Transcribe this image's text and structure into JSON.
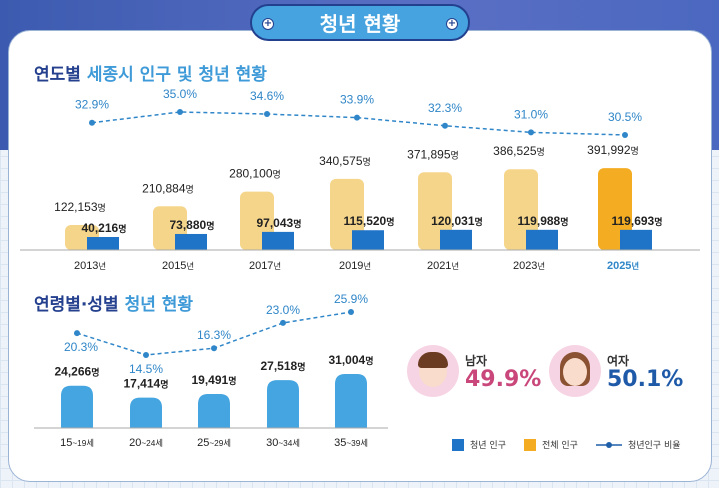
{
  "header": {
    "title": "청년 현황"
  },
  "colors": {
    "youth": "#1f74c8",
    "total": "#f5d58a",
    "total_highlight": "#f4ad22",
    "line": "#2f86c8",
    "bottom_bar": "#45a5e0",
    "male": "#c9477a",
    "female": "#1e5aa8"
  },
  "chart_data": [
    {
      "type": "bar+line",
      "title_dark": "연도별",
      "title_light": "세종시 인구 및 청년 현황",
      "categories": [
        "2013년",
        "2015년",
        "2017년",
        "2019년",
        "2021년",
        "2023년",
        "2025년"
      ],
      "series": [
        {
          "name": "청년 인구",
          "values": [
            40216,
            73880,
            97043,
            115520,
            120031,
            119988,
            119693
          ],
          "labels": [
            "40,216명",
            "73,880명",
            "97,043명",
            "115,520명",
            "120,031명",
            "119,988명",
            "119,693명"
          ]
        },
        {
          "name": "전체 인구",
          "values": [
            122153,
            210884,
            280100,
            340575,
            371895,
            386525,
            391992
          ],
          "labels": [
            "122,153명",
            "210,884명",
            "280,100명",
            "340,575명",
            "371,895명",
            "386,525명",
            "391,992명"
          ]
        },
        {
          "name": "청년인구 비율",
          "values": [
            32.9,
            35.0,
            34.6,
            33.9,
            32.3,
            31.0,
            30.5
          ],
          "labels": [
            "32.9%",
            "35.0%",
            "34.6%",
            "33.9%",
            "32.3%",
            "31.0%",
            "30.5%"
          ]
        }
      ],
      "highlight": "2025년"
    },
    {
      "type": "bar+line",
      "title_dark": "연령별·성별",
      "title_light": "청년 현황",
      "categories": [
        "15~19세",
        "20~24세",
        "25~29세",
        "30~34세",
        "35~39세"
      ],
      "series": [
        {
          "name": "청년 인구",
          "values": [
            24266,
            17414,
            19491,
            27518,
            31004
          ],
          "labels": [
            "24,266명",
            "17,414명",
            "19,491명",
            "27,518명",
            "31,004명"
          ]
        },
        {
          "name": "청년인구 비율",
          "values": [
            20.3,
            14.5,
            16.3,
            23.0,
            25.9
          ],
          "labels": [
            "20.3%",
            "14.5%",
            "16.3%",
            "23.0%",
            "25.9%"
          ]
        }
      ]
    }
  ],
  "gender": {
    "male": {
      "label": "남자",
      "value": "49.9%"
    },
    "female": {
      "label": "여자",
      "value": "50.1%"
    }
  },
  "legend": {
    "youth": "청년 인구",
    "total": "전체 인구",
    "ratio": "청년인구 비율"
  }
}
